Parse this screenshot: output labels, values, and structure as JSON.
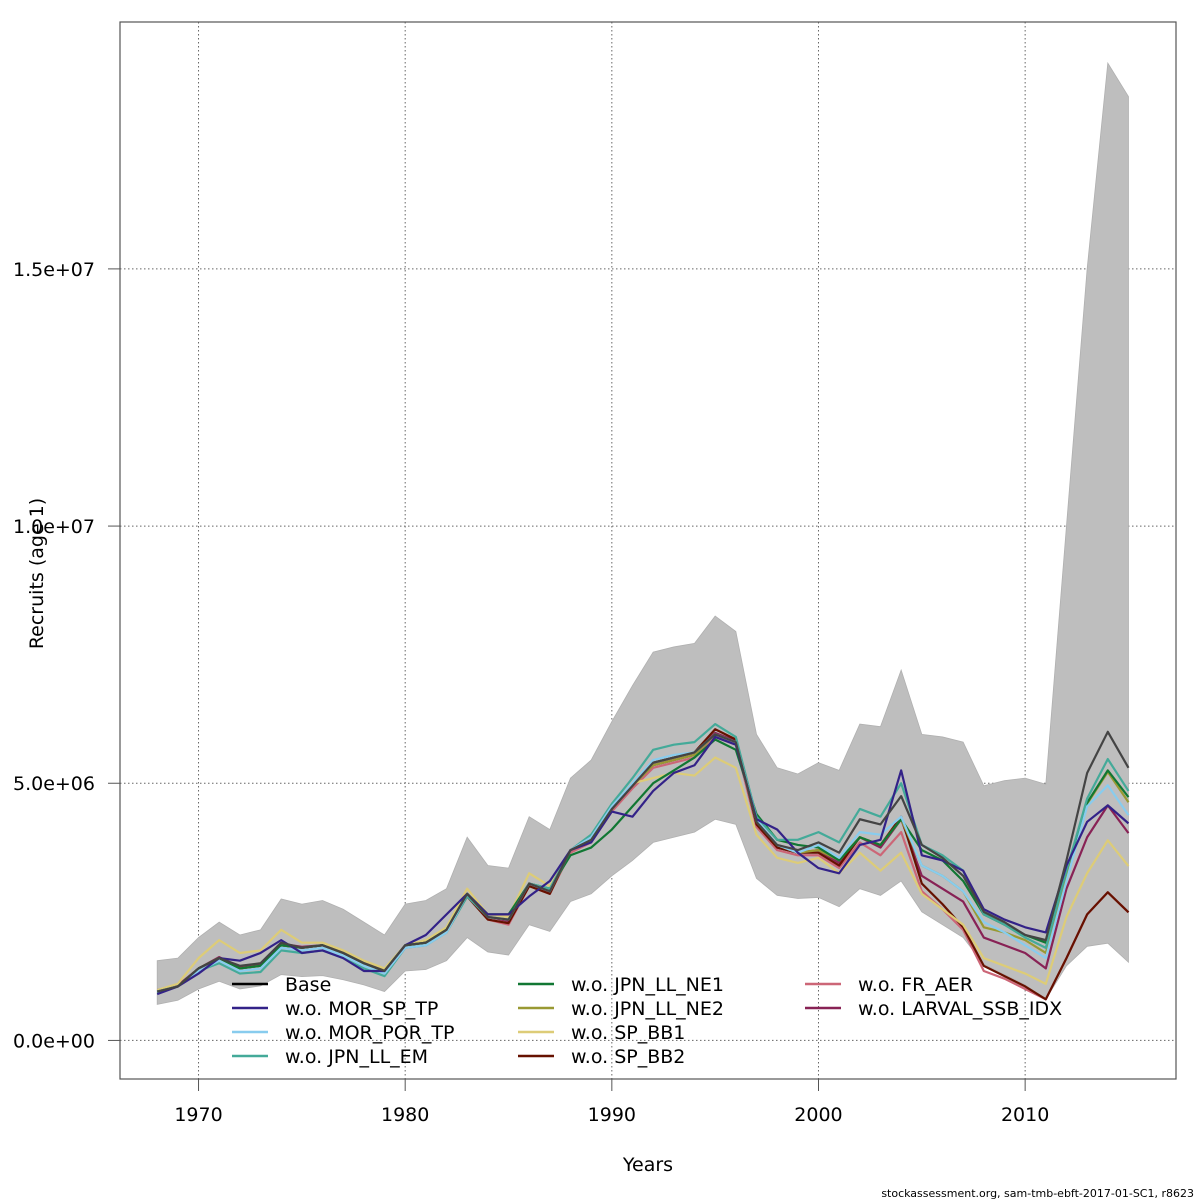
{
  "chart_data": {
    "type": "line",
    "title": "",
    "xlabel": "Years",
    "ylabel": "Recruits (age 1)",
    "xlim": [
      1966.2,
      2017.3
    ],
    "ylim": [
      -750000,
      19800000
    ],
    "grid": true,
    "x_ticks": [
      1970,
      1980,
      1990,
      2000,
      2010
    ],
    "x_tick_labels": [
      "1970",
      "1980",
      "1990",
      "2000",
      "2010"
    ],
    "y_ticks": [
      0,
      5000000,
      10000000,
      15000000
    ],
    "y_tick_labels": [
      "0.0e+00",
      "5.0e+06",
      "1.0e+07",
      "1.5e+07"
    ],
    "legend_position": "bottom-left (inside plot, 3 columns)",
    "x": [
      1968,
      1969,
      1970,
      1971,
      1972,
      1973,
      1974,
      1975,
      1976,
      1977,
      1978,
      1979,
      1980,
      1981,
      1982,
      1983,
      1984,
      1985,
      1986,
      1987,
      1988,
      1989,
      1990,
      1991,
      1992,
      1993,
      1994,
      1995,
      1996,
      1997,
      1998,
      1999,
      2000,
      2001,
      2002,
      2003,
      2004,
      2005,
      2006,
      2007,
      2008,
      2009,
      2010,
      2011,
      2012,
      2013,
      2014,
      2015
    ],
    "confidence_band": {
      "name": "Base 95% CI",
      "color": "#bebebe",
      "lower": [
        0.7,
        0.78,
        1.0,
        1.15,
        1.0,
        1.06,
        1.28,
        1.24,
        1.26,
        1.18,
        1.08,
        0.95,
        1.35,
        1.38,
        1.55,
        2.0,
        1.72,
        1.66,
        2.25,
        2.12,
        2.7,
        2.85,
        3.2,
        3.5,
        3.85,
        3.95,
        4.05,
        4.3,
        4.2,
        3.15,
        2.82,
        2.76,
        2.78,
        2.6,
        2.95,
        2.82,
        3.1,
        2.5,
        2.25,
        2.0,
        1.48,
        1.28,
        1.08,
        0.8,
        1.45,
        1.83,
        1.89,
        1.52
      ],
      "upper": [
        1.55,
        1.6,
        2.0,
        2.3,
        2.05,
        2.15,
        2.75,
        2.65,
        2.72,
        2.55,
        2.3,
        2.05,
        2.65,
        2.72,
        2.95,
        3.95,
        3.4,
        3.35,
        4.35,
        4.1,
        5.1,
        5.45,
        6.2,
        6.9,
        7.55,
        7.65,
        7.72,
        8.25,
        7.95,
        5.95,
        5.3,
        5.18,
        5.4,
        5.25,
        6.15,
        6.1,
        7.2,
        5.95,
        5.9,
        5.8,
        4.95,
        5.05,
        5.1,
        4.98,
        10.0,
        15.0,
        19.0,
        18.35
      ]
    },
    "series": [
      {
        "name": "Base",
        "color": "#444444",
        "values": [
          0.95,
          1.05,
          1.4,
          1.6,
          1.45,
          1.5,
          1.9,
          1.8,
          1.85,
          1.7,
          1.5,
          1.35,
          1.85,
          1.9,
          2.15,
          2.85,
          2.4,
          2.35,
          3.05,
          2.9,
          3.7,
          3.9,
          4.5,
          4.95,
          5.4,
          5.5,
          5.6,
          5.95,
          5.8,
          4.25,
          3.8,
          3.7,
          3.85,
          3.65,
          4.3,
          4.2,
          4.75,
          3.8,
          3.55,
          3.2,
          2.5,
          2.3,
          2.05,
          1.95,
          3.5,
          5.2,
          6.0,
          5.3
        ]
      },
      {
        "name": "w.o. MOR_SP_TP",
        "color": "#332288",
        "values": [
          0.9,
          1.05,
          1.3,
          1.6,
          1.55,
          1.7,
          1.95,
          1.7,
          1.75,
          1.6,
          1.35,
          1.35,
          1.85,
          2.05,
          2.45,
          2.85,
          2.45,
          2.45,
          2.8,
          3.1,
          3.7,
          3.85,
          4.45,
          4.35,
          4.85,
          5.2,
          5.35,
          5.9,
          5.75,
          4.3,
          4.1,
          3.65,
          3.35,
          3.25,
          3.8,
          3.9,
          5.25,
          3.6,
          3.5,
          3.3,
          2.55,
          2.35,
          2.2,
          2.1,
          3.4,
          4.25,
          4.57,
          4.22
        ]
      },
      {
        "name": "w.o. MOR_POR_TP",
        "color": "#88CCEE",
        "values": [
          0.95,
          1.05,
          1.35,
          1.55,
          1.35,
          1.4,
          1.8,
          1.75,
          1.8,
          1.65,
          1.45,
          1.3,
          1.8,
          1.85,
          2.1,
          2.85,
          2.4,
          2.35,
          3.05,
          2.9,
          3.7,
          3.95,
          4.55,
          5.0,
          5.45,
          5.55,
          5.6,
          5.95,
          5.8,
          4.3,
          3.8,
          3.65,
          3.8,
          3.55,
          4.05,
          4.0,
          4.35,
          3.4,
          3.2,
          2.9,
          2.3,
          2.1,
          1.85,
          1.6,
          3.1,
          4.55,
          4.96,
          4.38
        ]
      },
      {
        "name": "w.o. JPN_LL_EM",
        "color": "#44AA99",
        "values": [
          0.92,
          1.05,
          1.35,
          1.5,
          1.3,
          1.33,
          1.75,
          1.7,
          1.75,
          1.6,
          1.4,
          1.25,
          1.8,
          1.85,
          2.1,
          2.8,
          2.4,
          2.35,
          3.05,
          2.95,
          3.7,
          4.0,
          4.6,
          5.1,
          5.65,
          5.75,
          5.8,
          6.15,
          5.9,
          4.35,
          3.9,
          3.9,
          4.05,
          3.85,
          4.5,
          4.35,
          5.0,
          3.8,
          3.6,
          3.3,
          2.45,
          2.25,
          2.0,
          1.8,
          3.3,
          4.7,
          5.47,
          4.85
        ]
      },
      {
        "name": "w.o. JPN_LL_NE1",
        "color": "#117733",
        "values": [
          0.95,
          1.05,
          1.4,
          1.6,
          1.4,
          1.45,
          1.85,
          1.8,
          1.85,
          1.7,
          1.5,
          1.35,
          1.85,
          1.9,
          2.15,
          2.85,
          2.45,
          2.45,
          3.05,
          2.95,
          3.6,
          3.75,
          4.1,
          4.55,
          5.0,
          5.25,
          5.5,
          5.85,
          5.65,
          4.4,
          3.9,
          3.8,
          3.75,
          3.5,
          3.95,
          3.8,
          4.3,
          3.7,
          3.5,
          3.1,
          2.45,
          2.25,
          2.05,
          1.9,
          3.3,
          4.62,
          5.25,
          4.73
        ]
      },
      {
        "name": "w.o. JPN_LL_NE2",
        "color": "#999933",
        "values": [
          0.95,
          1.05,
          1.4,
          1.6,
          1.4,
          1.45,
          1.85,
          1.8,
          1.85,
          1.7,
          1.5,
          1.35,
          1.85,
          1.9,
          2.15,
          2.85,
          2.4,
          2.35,
          3.05,
          2.9,
          3.7,
          3.9,
          4.5,
          4.95,
          5.35,
          5.45,
          5.55,
          5.95,
          5.8,
          4.25,
          3.8,
          3.65,
          3.7,
          3.5,
          3.95,
          3.8,
          4.3,
          3.4,
          3.2,
          2.9,
          2.2,
          2.1,
          1.95,
          1.7,
          3.2,
          4.6,
          5.22,
          4.63
        ]
      },
      {
        "name": "w.o. SP_BB1",
        "color": "#DDCC77",
        "values": [
          0.98,
          1.1,
          1.6,
          1.95,
          1.7,
          1.75,
          2.15,
          1.9,
          1.9,
          1.75,
          1.55,
          1.4,
          1.85,
          1.95,
          2.2,
          2.95,
          2.45,
          2.4,
          3.25,
          3.0,
          3.7,
          3.9,
          4.55,
          5.0,
          5.1,
          5.2,
          5.15,
          5.5,
          5.3,
          4.0,
          3.55,
          3.45,
          3.55,
          3.25,
          3.65,
          3.3,
          3.65,
          2.85,
          2.55,
          2.25,
          1.6,
          1.45,
          1.3,
          1.1,
          2.4,
          3.25,
          3.89,
          3.39
        ]
      },
      {
        "name": "w.o. SP_BB2",
        "color": "#661100",
        "values": [
          0.95,
          1.05,
          1.4,
          1.6,
          1.4,
          1.45,
          1.85,
          1.8,
          1.85,
          1.7,
          1.5,
          1.35,
          1.85,
          1.9,
          2.15,
          2.8,
          2.35,
          2.28,
          3.0,
          2.85,
          3.7,
          3.9,
          4.5,
          4.95,
          5.4,
          5.5,
          5.6,
          6.05,
          5.85,
          4.2,
          3.75,
          3.65,
          3.65,
          3.4,
          3.95,
          3.8,
          4.35,
          3.05,
          2.65,
          2.2,
          1.45,
          1.25,
          1.05,
          0.8,
          1.6,
          2.45,
          2.88,
          2.49
        ]
      },
      {
        "name": "w.o. FR_AER",
        "color": "#CC6677",
        "values": [
          0.95,
          1.05,
          1.4,
          1.6,
          1.4,
          1.45,
          1.85,
          1.8,
          1.85,
          1.7,
          1.5,
          1.35,
          1.85,
          1.9,
          2.15,
          2.8,
          2.35,
          2.25,
          3.0,
          2.85,
          3.65,
          3.85,
          4.45,
          4.9,
          5.3,
          5.4,
          5.5,
          5.9,
          5.75,
          4.15,
          3.7,
          3.6,
          3.6,
          3.35,
          3.85,
          3.6,
          4.05,
          2.9,
          2.55,
          2.15,
          1.35,
          1.2,
          1.0,
          0.8,
          1.6,
          2.45,
          2.88,
          2.49
        ]
      },
      {
        "name": "w.o. LARVAL_SSB_IDX",
        "color": "#882255",
        "values": [
          0.98,
          1.07,
          1.4,
          1.62,
          1.42,
          1.48,
          1.88,
          1.82,
          1.85,
          1.72,
          1.52,
          1.38,
          1.85,
          1.92,
          2.17,
          2.85,
          2.4,
          2.32,
          3.05,
          2.88,
          3.7,
          3.9,
          4.5,
          4.95,
          5.35,
          5.45,
          5.55,
          5.98,
          5.82,
          4.25,
          3.75,
          3.65,
          3.7,
          3.45,
          3.95,
          3.75,
          4.3,
          3.2,
          2.95,
          2.7,
          2.0,
          1.85,
          1.7,
          1.4,
          2.95,
          3.95,
          4.57,
          4.03
        ]
      }
    ],
    "value_unit_multiplier": 1000000
  },
  "legend": {
    "columns": [
      [
        "Base",
        "w.o. MOR_SP_TP",
        "w.o. MOR_POR_TP",
        "w.o. JPN_LL_EM"
      ],
      [
        "w.o. JPN_LL_NE1",
        "w.o. JPN_LL_NE2",
        "w.o. SP_BB1",
        "w.o. SP_BB2"
      ],
      [
        "w.o. FR_AER",
        "w.o. LARVAL_SSB_IDX"
      ]
    ]
  },
  "footer": "stockassessment.org, sam-tmb-ebft-2017-01-SC1, r8623"
}
